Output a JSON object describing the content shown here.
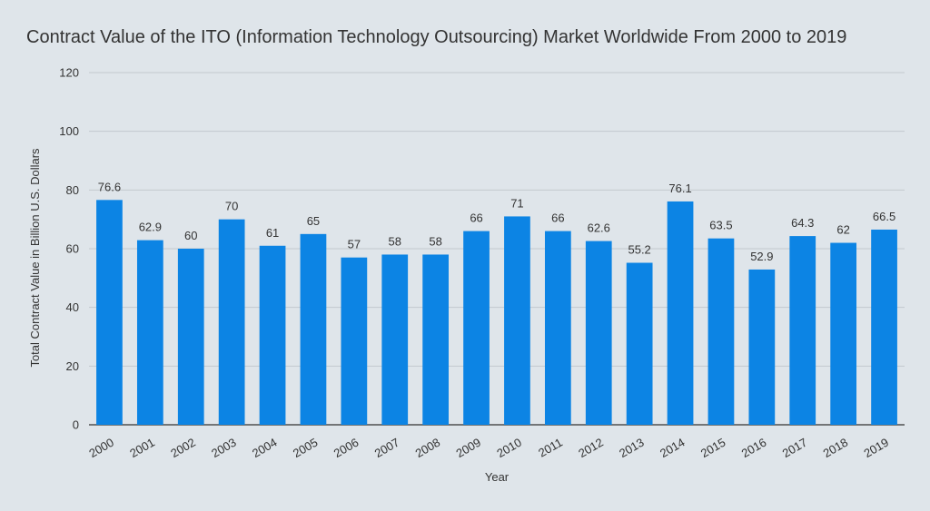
{
  "chart_data": {
    "type": "bar",
    "title": "Contract Value of the ITO (Information Technology Outsourcing) Market Worldwide From 2000 to 2019",
    "xlabel": "Year",
    "ylabel": "Total Contract Value in Billion U.S. Dollars",
    "categories": [
      "2000",
      "2001",
      "2002",
      "2003",
      "2004",
      "2005",
      "2006",
      "2007",
      "2008",
      "2009",
      "2010",
      "2011",
      "2012",
      "2013",
      "2014",
      "2015",
      "2016",
      "2017",
      "2018",
      "2019"
    ],
    "values": [
      76.6,
      62.9,
      60,
      70,
      61,
      65,
      57,
      58,
      58,
      66,
      71,
      66,
      62.6,
      55.2,
      76.1,
      63.5,
      52.9,
      64.3,
      62,
      66.5
    ],
    "value_labels": [
      "76.6",
      "62.9",
      "60",
      "70",
      "61",
      "65",
      "57",
      "58",
      "58",
      "66",
      "71",
      "66",
      "62.6",
      "55.2",
      "76.1",
      "63.5",
      "52.9",
      "64.3",
      "62",
      "66.5"
    ],
    "yticks": [
      "0",
      "20",
      "40",
      "60",
      "80",
      "100",
      "120"
    ],
    "ylim": [
      0,
      120
    ],
    "grid": true,
    "legend": "none",
    "colors": {
      "bar": "#0c84e4",
      "grid": "#c3c9ce",
      "baseline": "#333333",
      "background": "#dfe5ea"
    }
  }
}
